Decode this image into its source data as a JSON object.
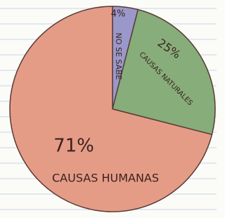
{
  "chart_data": {
    "type": "pie",
    "categories": [
      "NO SE SABE",
      "CAUSAS NATURALES",
      "CAUSAS HUMANAS"
    ],
    "values": [
      4,
      25,
      71
    ],
    "value_labels": [
      "4%",
      "25%",
      "71%"
    ],
    "colors": [
      "#9a98c8",
      "#86ad7a",
      "#e59c86"
    ]
  }
}
